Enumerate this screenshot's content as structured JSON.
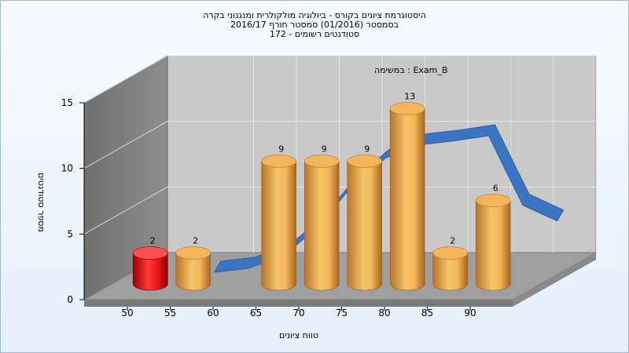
{
  "chart_data": {
    "type": "bar",
    "title_lines": [
      "היסטוגרמת ציונים בקורס - ביולוגיה מולקולרית ומנגנוני בקרה",
      "בסמסטר (01/2016) סמסטר חורף 2016/17",
      "סטודנטים רשומים - 172"
    ],
    "annotation": "Exam_B : במשימה",
    "xlabel": "טווח ציונים",
    "ylabel": "מספר סטודנטים",
    "x_ticks": [
      "50",
      "55",
      "60",
      "65",
      "70",
      "75",
      "80",
      "85",
      "90"
    ],
    "y_ticks": [
      0,
      5,
      10,
      15
    ],
    "ylim": [
      0,
      15
    ],
    "bars": [
      {
        "x": 52.5,
        "value": 2,
        "color": "#e81010"
      },
      {
        "x": 57.5,
        "value": 2,
        "color": "#e9a545"
      },
      {
        "x": 67.5,
        "value": 9,
        "color": "#e9a545"
      },
      {
        "x": 72.5,
        "value": 9,
        "color": "#e9a545"
      },
      {
        "x": 77.5,
        "value": 9,
        "color": "#e9a545"
      },
      {
        "x": 82.5,
        "value": 13,
        "color": "#e9a545"
      },
      {
        "x": 87.5,
        "value": 2,
        "color": "#e9a545"
      },
      {
        "x": 92.5,
        "value": 6,
        "color": "#e9a545"
      }
    ],
    "curve": {
      "x": [
        54,
        58,
        62,
        66,
        70,
        74,
        78,
        82,
        86,
        90,
        94
      ],
      "values": [
        0.3,
        0.6,
        1.5,
        3.7,
        6.8,
        9.0,
        10.0,
        10.3,
        10.7,
        5.4,
        4.2
      ],
      "color": "#3a74c3"
    },
    "grid": true,
    "view": "3d"
  }
}
